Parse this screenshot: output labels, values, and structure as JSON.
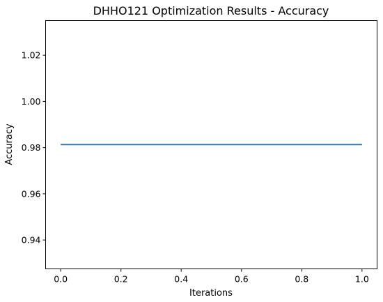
{
  "chart_data": {
    "type": "line",
    "title": "DHHO121 Optimization Results - Accuracy",
    "xlabel": "Iterations",
    "ylabel": "Accuracy",
    "xlim": [
      -0.05,
      1.05
    ],
    "ylim": [
      0.9275,
      1.035
    ],
    "x_ticks": [
      0.0,
      0.2,
      0.4,
      0.6,
      0.8,
      1.0
    ],
    "x_tick_labels": [
      "0.0",
      "0.2",
      "0.4",
      "0.6",
      "0.8",
      "1.0"
    ],
    "y_ticks": [
      0.94,
      0.96,
      0.98,
      1.0,
      1.02
    ],
    "y_tick_labels": [
      "0.94",
      "0.96",
      "0.98",
      "1.00",
      "1.02"
    ],
    "grid": false,
    "series": [
      {
        "x": [
          0.0,
          1.0
        ],
        "values": [
          0.9813,
          0.9813
        ],
        "color": "#1f77b4"
      }
    ]
  }
}
